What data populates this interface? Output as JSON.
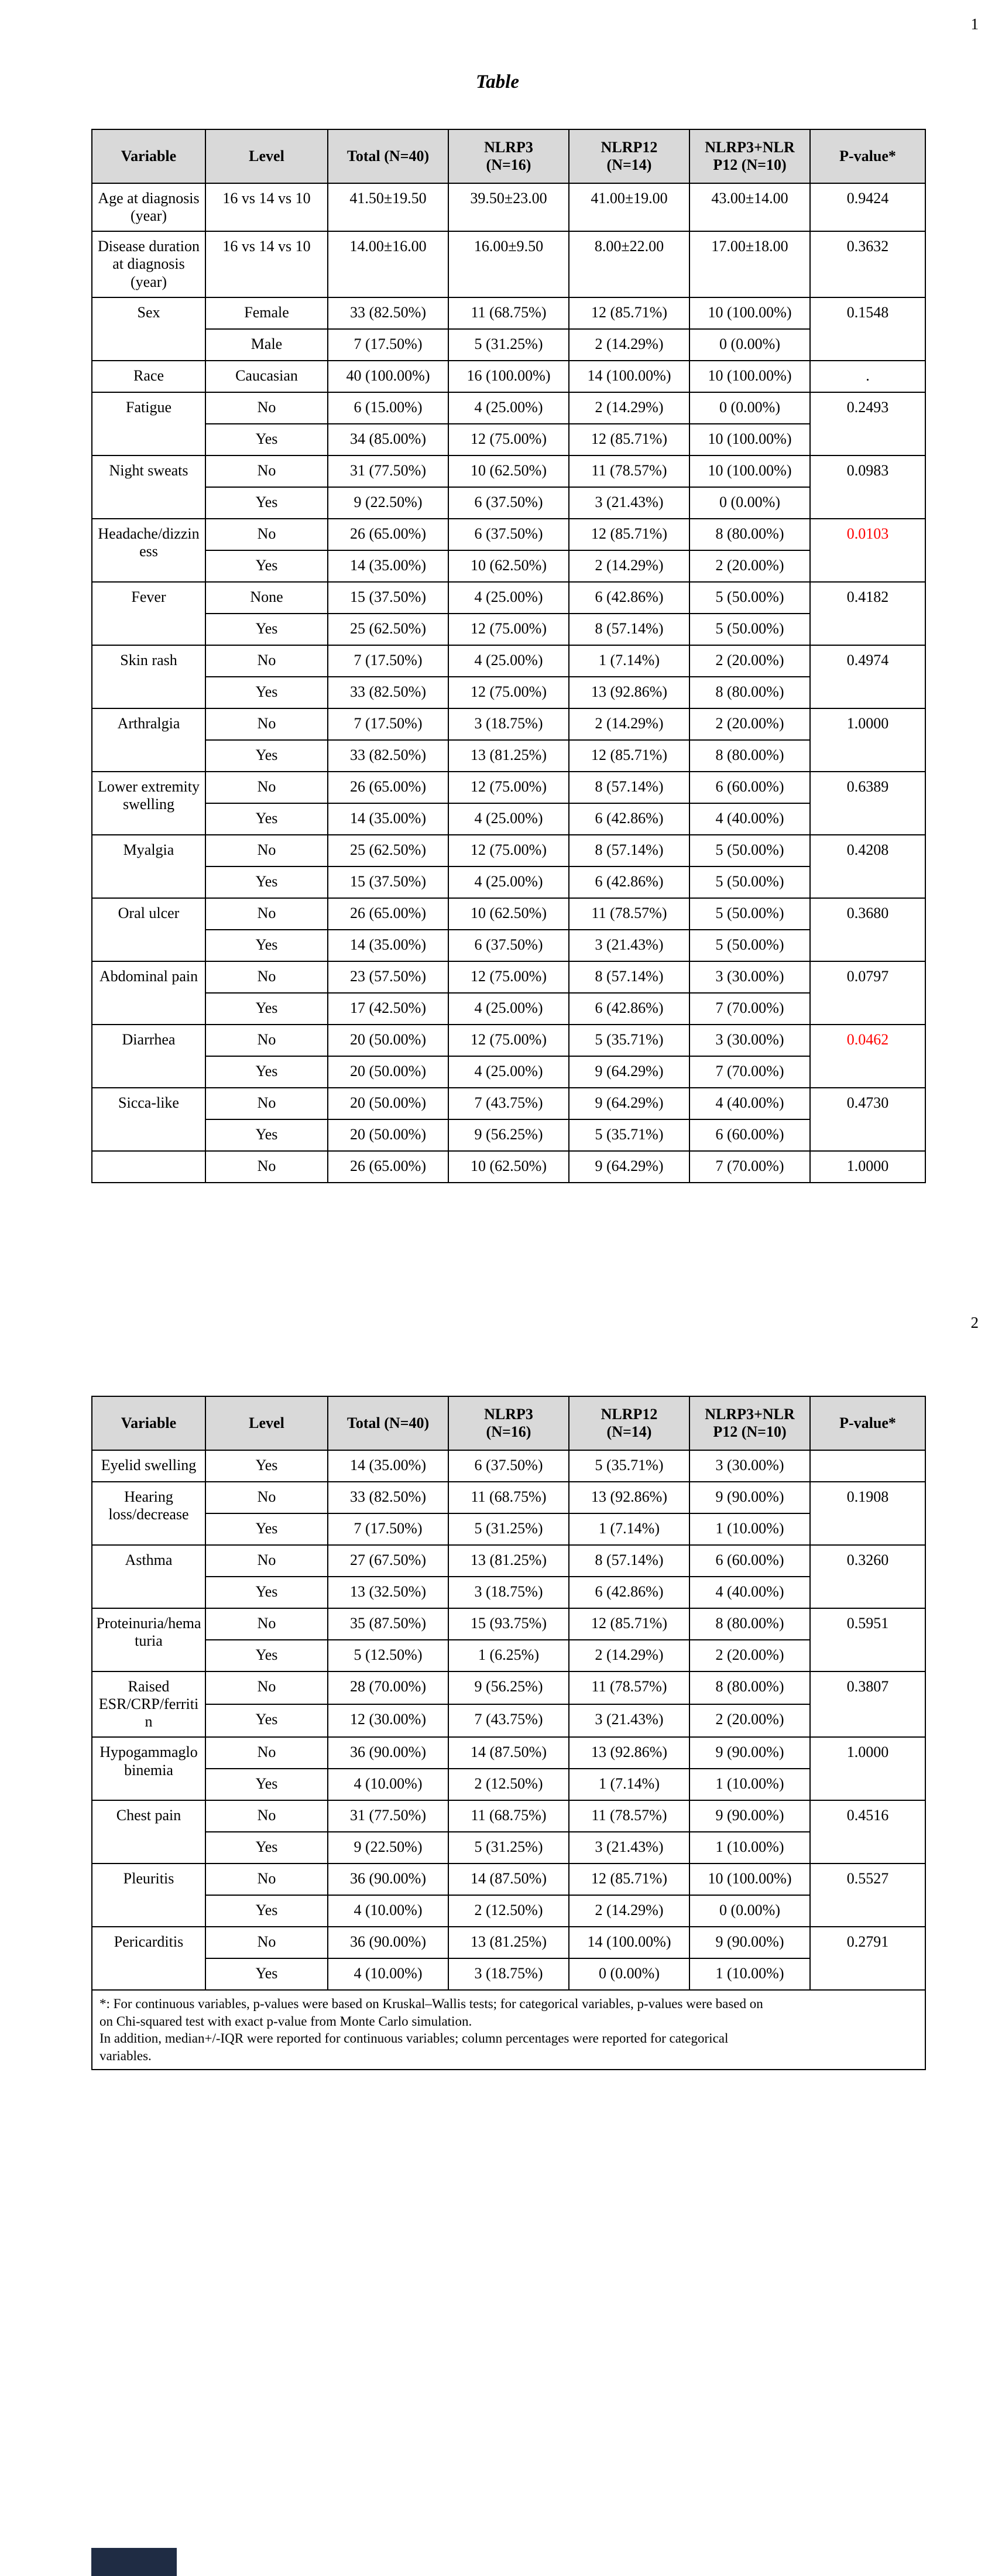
{
  "colors": {
    "significant_p": "#ff0000",
    "header_bg": "#d9d9d9",
    "artifact": "#1f2c44"
  },
  "page1": {
    "page_number": "1",
    "title": "Table",
    "table": {
      "headers": [
        "Variable",
        "Level",
        "Total (N=40)",
        [
          "NLRP3",
          "(N=16)"
        ],
        [
          "NLRP12",
          "(N=14)"
        ],
        [
          "NLRP3+NLR",
          "P12 (N=10)"
        ],
        "P-value*"
      ],
      "groups": [
        {
          "variable": "Age at diagnosis (year)",
          "pvalue": "0.9424",
          "rows": [
            [
              "16 vs 14 vs 10",
              "41.50±19.50",
              "39.50±23.00",
              "41.00±19.00",
              "43.00±14.00"
            ]
          ]
        },
        {
          "variable": "Disease duration at diagnosis (year)",
          "pvalue": "0.3632",
          "rows": [
            [
              "16 vs 14 vs 10",
              "14.00±16.00",
              "16.00±9.50",
              "8.00±22.00",
              "17.00±18.00"
            ]
          ]
        },
        {
          "variable": "Sex",
          "pvalue": "0.1548",
          "rows": [
            [
              "Female",
              "33 (82.50%)",
              "11 (68.75%)",
              "12 (85.71%)",
              "10 (100.00%)"
            ],
            [
              "Male",
              "7 (17.50%)",
              "5 (31.25%)",
              "2 (14.29%)",
              "0 (0.00%)"
            ]
          ]
        },
        {
          "variable": "Race",
          "pvalue": ".",
          "rows": [
            [
              "Caucasian",
              "40 (100.00%)",
              "16 (100.00%)",
              "14 (100.00%)",
              "10 (100.00%)"
            ]
          ]
        },
        {
          "variable": "Fatigue",
          "pvalue": "0.2493",
          "rows": [
            [
              "No",
              "6 (15.00%)",
              "4 (25.00%)",
              "2 (14.29%)",
              "0 (0.00%)"
            ],
            [
              "Yes",
              "34 (85.00%)",
              "12 (75.00%)",
              "12 (85.71%)",
              "10 (100.00%)"
            ]
          ]
        },
        {
          "variable": "Night sweats",
          "pvalue": "0.0983",
          "rows": [
            [
              "No",
              "31 (77.50%)",
              "10 (62.50%)",
              "11 (78.57%)",
              "10 (100.00%)"
            ],
            [
              "Yes",
              "9 (22.50%)",
              "6 (37.50%)",
              "3 (21.43%)",
              "0 (0.00%)"
            ]
          ]
        },
        {
          "variable": "Headache/dizziness",
          "pvalue": "0.0103",
          "significant": true,
          "rows": [
            [
              "No",
              "26 (65.00%)",
              "6 (37.50%)",
              "12 (85.71%)",
              "8 (80.00%)"
            ],
            [
              "Yes",
              "14 (35.00%)",
              "10 (62.50%)",
              "2 (14.29%)",
              "2 (20.00%)"
            ]
          ]
        },
        {
          "variable": "Fever",
          "pvalue": "0.4182",
          "rows": [
            [
              "None",
              "15 (37.50%)",
              "4 (25.00%)",
              "6 (42.86%)",
              "5 (50.00%)"
            ],
            [
              "Yes",
              "25 (62.50%)",
              "12 (75.00%)",
              "8 (57.14%)",
              "5 (50.00%)"
            ]
          ]
        },
        {
          "variable": "Skin rash",
          "pvalue": "0.4974",
          "rows": [
            [
              "No",
              "7 (17.50%)",
              "4 (25.00%)",
              "1 (7.14%)",
              "2 (20.00%)"
            ],
            [
              "Yes",
              "33 (82.50%)",
              "12 (75.00%)",
              "13 (92.86%)",
              "8 (80.00%)"
            ]
          ]
        },
        {
          "variable": "Arthralgia",
          "pvalue": "1.0000",
          "rows": [
            [
              "No",
              "7 (17.50%)",
              "3 (18.75%)",
              "2 (14.29%)",
              "2 (20.00%)"
            ],
            [
              "Yes",
              "33 (82.50%)",
              "13 (81.25%)",
              "12 (85.71%)",
              "8 (80.00%)"
            ]
          ]
        },
        {
          "variable": "Lower extremity swelling",
          "pvalue": "0.6389",
          "rows": [
            [
              "No",
              "26 (65.00%)",
              "12 (75.00%)",
              "8 (57.14%)",
              "6 (60.00%)"
            ],
            [
              "Yes",
              "14 (35.00%)",
              "4 (25.00%)",
              "6 (42.86%)",
              "4 (40.00%)"
            ]
          ]
        },
        {
          "variable": "Myalgia",
          "pvalue": "0.4208",
          "rows": [
            [
              "No",
              "25 (62.50%)",
              "12 (75.00%)",
              "8 (57.14%)",
              "5 (50.00%)"
            ],
            [
              "Yes",
              "15 (37.50%)",
              "4 (25.00%)",
              "6 (42.86%)",
              "5 (50.00%)"
            ]
          ]
        },
        {
          "variable": "Oral ulcer",
          "pvalue": "0.3680",
          "rows": [
            [
              "No",
              "26 (65.00%)",
              "10 (62.50%)",
              "11 (78.57%)",
              "5 (50.00%)"
            ],
            [
              "Yes",
              "14 (35.00%)",
              "6 (37.50%)",
              "3 (21.43%)",
              "5 (50.00%)"
            ]
          ]
        },
        {
          "variable": "Abdominal pain",
          "pvalue": "0.0797",
          "rows": [
            [
              "No",
              "23 (57.50%)",
              "12 (75.00%)",
              "8 (57.14%)",
              "3 (30.00%)"
            ],
            [
              "Yes",
              "17 (42.50%)",
              "4 (25.00%)",
              "6 (42.86%)",
              "7 (70.00%)"
            ]
          ]
        },
        {
          "variable": "Diarrhea",
          "pvalue": "0.0462",
          "significant": true,
          "rows": [
            [
              "No",
              "20 (50.00%)",
              "12 (75.00%)",
              "5 (35.71%)",
              "3 (30.00%)"
            ],
            [
              "Yes",
              "20 (50.00%)",
              "4 (25.00%)",
              "9 (64.29%)",
              "7 (70.00%)"
            ]
          ]
        },
        {
          "variable": "Sicca-like",
          "pvalue": "0.4730",
          "rows": [
            [
              "No",
              "20 (50.00%)",
              "7 (43.75%)",
              "9 (64.29%)",
              "4 (40.00%)"
            ],
            [
              "Yes",
              "20 (50.00%)",
              "9 (56.25%)",
              "5 (35.71%)",
              "6 (60.00%)"
            ]
          ]
        },
        {
          "variable": "",
          "pvalue": "1.0000",
          "rows": [
            [
              "No",
              "26 (65.00%)",
              "10 (62.50%)",
              "9 (64.29%)",
              "7 (70.00%)"
            ]
          ]
        }
      ]
    }
  },
  "page2": {
    "page_number": "2",
    "table": {
      "headers": [
        "Variable",
        "Level",
        "Total (N=40)",
        [
          "NLRP3",
          "(N=16)"
        ],
        [
          "NLRP12",
          "(N=14)"
        ],
        [
          "NLRP3+NLR",
          "P12 (N=10)"
        ],
        "P-value*"
      ],
      "groups": [
        {
          "variable": "Eyelid swelling",
          "pvalue": "",
          "rows": [
            [
              "Yes",
              "14 (35.00%)",
              "6 (37.50%)",
              "5 (35.71%)",
              "3 (30.00%)"
            ]
          ]
        },
        {
          "variable": "Hearing loss/decrease",
          "pvalue": "0.1908",
          "rows": [
            [
              "No",
              "33 (82.50%)",
              "11 (68.75%)",
              "13 (92.86%)",
              "9 (90.00%)"
            ],
            [
              "Yes",
              "7 (17.50%)",
              "5 (31.25%)",
              "1 (7.14%)",
              "1 (10.00%)"
            ]
          ]
        },
        {
          "variable": "Asthma",
          "pvalue": "0.3260",
          "rows": [
            [
              "No",
              "27 (67.50%)",
              "13 (81.25%)",
              "8 (57.14%)",
              "6 (60.00%)"
            ],
            [
              "Yes",
              "13 (32.50%)",
              "3 (18.75%)",
              "6 (42.86%)",
              "4 (40.00%)"
            ]
          ]
        },
        {
          "variable": "Proteinuria/hematuria",
          "pvalue": "0.5951",
          "rows": [
            [
              "No",
              "35 (87.50%)",
              "15 (93.75%)",
              "12 (85.71%)",
              "8 (80.00%)"
            ],
            [
              "Yes",
              "5 (12.50%)",
              "1 (6.25%)",
              "2 (14.29%)",
              "2 (20.00%)"
            ]
          ]
        },
        {
          "variable": "Raised ESR/CRP/ferritin",
          "pvalue": "0.3807",
          "rows": [
            [
              "No",
              "28 (70.00%)",
              "9 (56.25%)",
              "11 (78.57%)",
              "8 (80.00%)"
            ],
            [
              "Yes",
              "12 (30.00%)",
              "7 (43.75%)",
              "3 (21.43%)",
              "2 (20.00%)"
            ]
          ]
        },
        {
          "variable": "Hypogammaglobinemia",
          "pvalue": "1.0000",
          "rows": [
            [
              "No",
              "36 (90.00%)",
              "14 (87.50%)",
              "13 (92.86%)",
              "9 (90.00%)"
            ],
            [
              "Yes",
              "4 (10.00%)",
              "2 (12.50%)",
              "1 (7.14%)",
              "1 (10.00%)"
            ]
          ]
        },
        {
          "variable": "Chest pain",
          "pvalue": "0.4516",
          "rows": [
            [
              "No",
              "31 (77.50%)",
              "11 (68.75%)",
              "11 (78.57%)",
              "9 (90.00%)"
            ],
            [
              "Yes",
              "9 (22.50%)",
              "5 (31.25%)",
              "3 (21.43%)",
              "1 (10.00%)"
            ]
          ]
        },
        {
          "variable": "Pleuritis",
          "pvalue": "0.5527",
          "rows": [
            [
              "No",
              "36 (90.00%)",
              "14 (87.50%)",
              "12 (85.71%)",
              "10 (100.00%)"
            ],
            [
              "Yes",
              "4 (10.00%)",
              "2 (12.50%)",
              "2 (14.29%)",
              "0 (0.00%)"
            ]
          ]
        },
        {
          "variable": "Pericarditis",
          "pvalue": "0.2791",
          "rows": [
            [
              "No",
              "36 (90.00%)",
              "13 (81.25%)",
              "14 (100.00%)",
              "9 (90.00%)"
            ],
            [
              "Yes",
              "4 (10.00%)",
              "3 (18.75%)",
              "0 (0.00%)",
              "1 (10.00%)"
            ]
          ]
        }
      ],
      "footnote_lines": [
        "*: For continuous variables, p-values were based on Kruskal–Wallis tests; for categorical variables, p-values were based on",
        "on Chi-squared test with exact p-value from Monte Carlo simulation.",
        "In addition, median+/-IQR were reported for continuous variables; column percentages were reported for categorical",
        "variables."
      ]
    }
  }
}
